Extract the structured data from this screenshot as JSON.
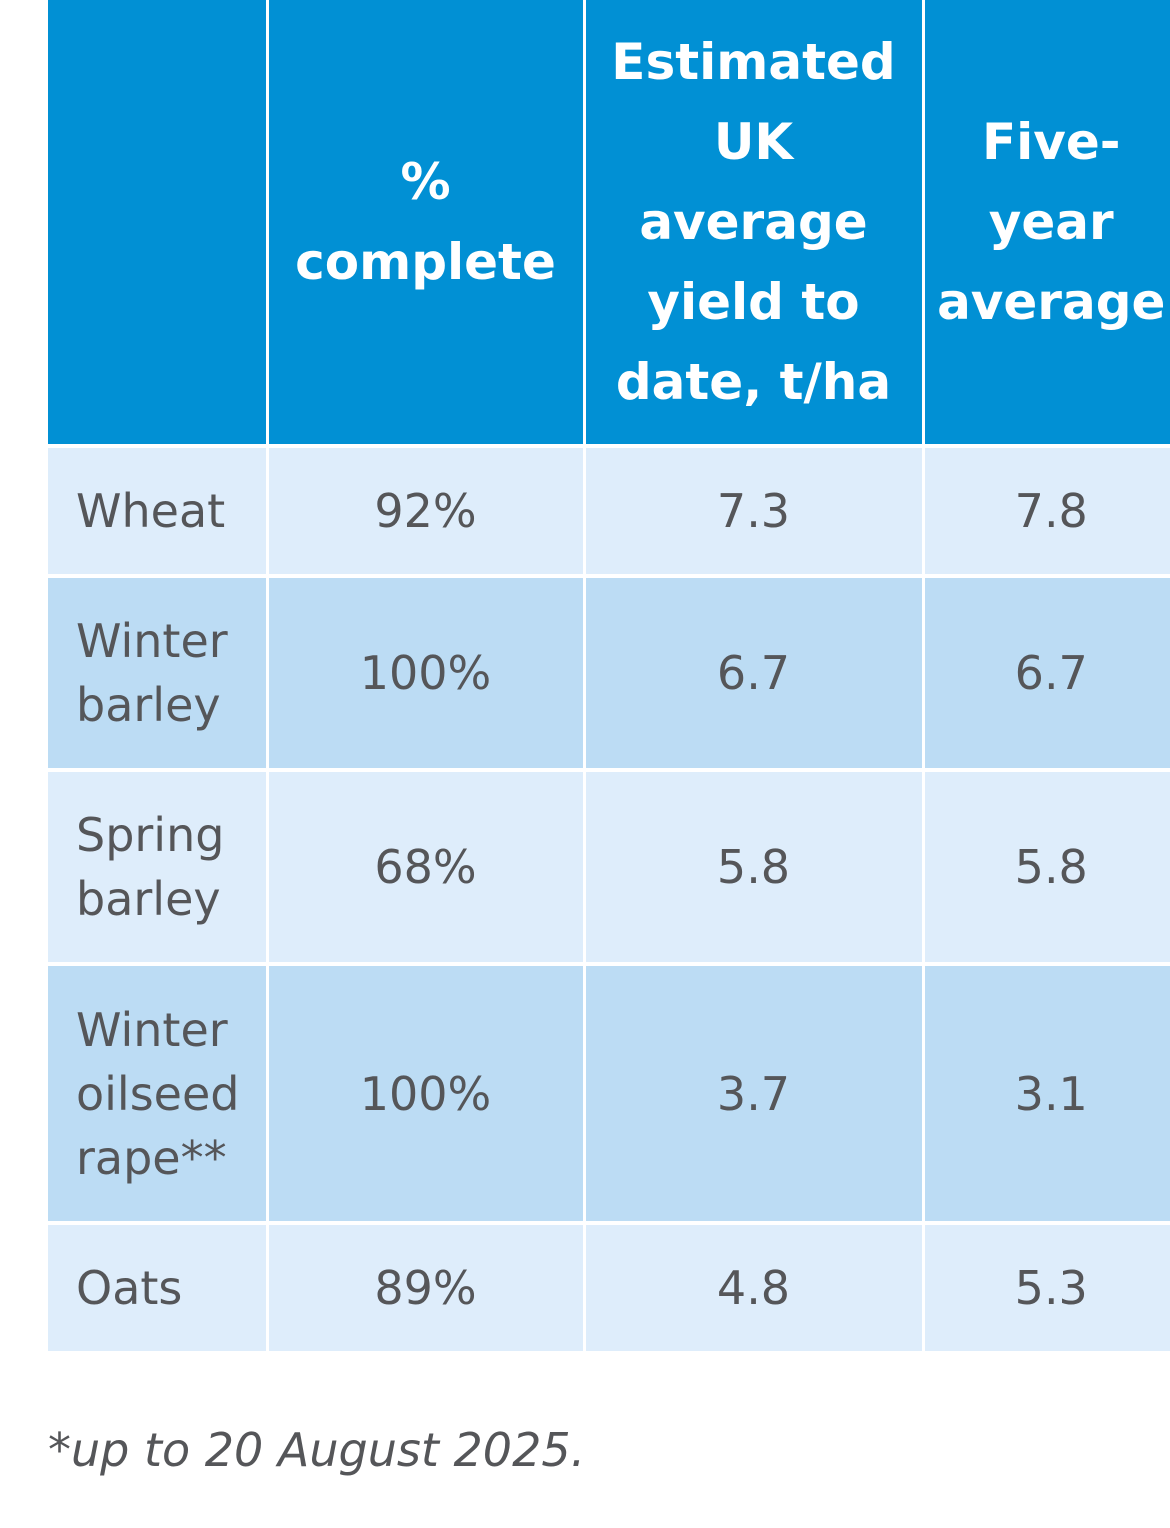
{
  "table": {
    "headers": [
      "",
      "% complete",
      "Estimated UK average yield to date, t/ha",
      "Five-year average"
    ],
    "rows": [
      {
        "crop": "Wheat",
        "pct_complete": "92%",
        "est_yield": "7.3",
        "five_year_avg": "7.8"
      },
      {
        "crop": "Winter barley",
        "pct_complete": "100%",
        "est_yield": "6.7",
        "five_year_avg": "6.7"
      },
      {
        "crop": "Spring barley",
        "pct_complete": "68%",
        "est_yield": "5.8",
        "five_year_avg": "5.8"
      },
      {
        "crop": "Winter oilseed rape**",
        "pct_complete": "100%",
        "est_yield": "3.7",
        "five_year_avg": "3.1"
      },
      {
        "crop": "Oats",
        "pct_complete": "89%",
        "est_yield": "4.8",
        "five_year_avg": "5.3"
      }
    ]
  },
  "footnote": "*up to 20 August 2025.",
  "colors": {
    "header_bg": "#0190d4",
    "row_light": "#deedfb",
    "row_dark": "#bcdcf4",
    "text": "#555659"
  }
}
